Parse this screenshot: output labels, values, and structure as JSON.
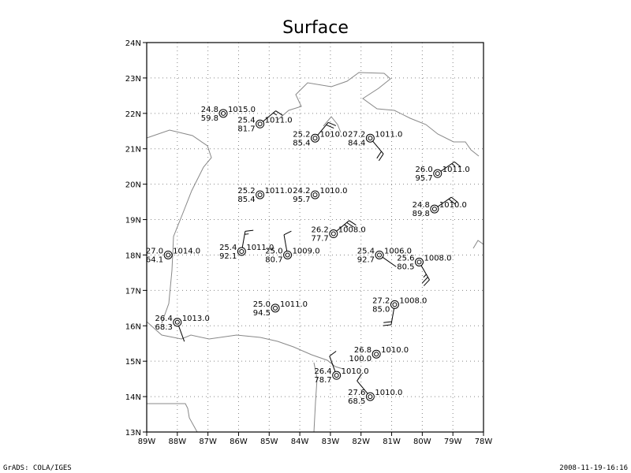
{
  "title": "Surface",
  "footer": {
    "left": "GrADS: COLA/IGES",
    "right": "2008-11-19-16:16"
  },
  "axes": {
    "x_ticks": [
      "89W",
      "88W",
      "87W",
      "86W",
      "85W",
      "84W",
      "83W",
      "82W",
      "81W",
      "80W",
      "79W",
      "78W"
    ],
    "y_ticks": [
      "13N",
      "14N",
      "15N",
      "16N",
      "17N",
      "18N",
      "19N",
      "20N",
      "21N",
      "22N",
      "23N",
      "24N"
    ],
    "lon_range": [
      -89,
      -78
    ],
    "lat_range": [
      13,
      24
    ],
    "grid": true,
    "grid_style": "dotted"
  },
  "colors": {
    "frame": "#000000",
    "coast": "#888888",
    "grid": "#888888",
    "station": "#000000"
  },
  "chart_data": {
    "type": "station-plot",
    "stations": [
      {
        "lon": -86.5,
        "lat": 22.0,
        "temp": "24.8",
        "pressure": "1015.0",
        "humidity": "59.8",
        "wind": null
      },
      {
        "lon": -85.3,
        "lat": 21.7,
        "temp": "25.4",
        "pressure": "1011.0",
        "humidity": "81.7",
        "wind": {
          "dir": 50,
          "barbs": 1.5
        }
      },
      {
        "lon": -83.5,
        "lat": 21.3,
        "temp": "25.2",
        "pressure": "1010.0",
        "humidity": "85.4",
        "wind": {
          "dir": 40,
          "barbs": 2
        }
      },
      {
        "lon": -81.7,
        "lat": 21.3,
        "temp": "27.2",
        "pressure": "1011.0",
        "humidity": "84.4",
        "wind": {
          "dir": 140,
          "barbs": 2
        }
      },
      {
        "lon": -79.5,
        "lat": 20.3,
        "temp": "26.0",
        "pressure": "1011.0",
        "humidity": "95.7",
        "wind": {
          "dir": 55,
          "barbs": 1.5
        }
      },
      {
        "lon": -85.3,
        "lat": 19.7,
        "temp": "25.2",
        "pressure": "1011.0",
        "humidity": "85.4",
        "wind": null
      },
      {
        "lon": -83.5,
        "lat": 19.7,
        "temp": "24.2",
        "pressure": "1010.0",
        "humidity": "95.7",
        "wind": null
      },
      {
        "lon": -79.6,
        "lat": 19.3,
        "temp": "24.8",
        "pressure": "1010.0",
        "humidity": "89.8",
        "wind": {
          "dir": 55,
          "barbs": 2
        }
      },
      {
        "lon": -82.9,
        "lat": 18.6,
        "temp": "26.2",
        "pressure": "1008.0",
        "humidity": "77.7",
        "wind": {
          "dir": 50,
          "barbs": 2.5
        }
      },
      {
        "lon": -85.9,
        "lat": 18.1,
        "temp": "25.4",
        "pressure": "1011.0",
        "humidity": "92.1",
        "wind": {
          "dir": 10,
          "barbs": 1.5
        }
      },
      {
        "lon": -88.3,
        "lat": 18.0,
        "temp": "27.0",
        "pressure": "1014.0",
        "humidity": "64.1",
        "wind": null
      },
      {
        "lon": -84.4,
        "lat": 18.0,
        "temp": "25.0",
        "pressure": "1009.0",
        "humidity": "80.7",
        "wind": {
          "dir": 350,
          "barbs": 1
        }
      },
      {
        "lon": -81.4,
        "lat": 18.0,
        "temp": "25.4",
        "pressure": "1006.0",
        "humidity": "92.7",
        "wind": {
          "dir": 125,
          "barbs": 0
        }
      },
      {
        "lon": -80.1,
        "lat": 17.8,
        "temp": "25.6",
        "pressure": "1008.0",
        "humidity": "80.5",
        "wind": {
          "dir": 150,
          "barbs": 2.5
        }
      },
      {
        "lon": -80.9,
        "lat": 16.6,
        "temp": "27.2",
        "pressure": "1008.0",
        "humidity": "85.0",
        "wind": {
          "dir": 190,
          "barbs": 2
        }
      },
      {
        "lon": -84.8,
        "lat": 16.5,
        "temp": "25.0",
        "pressure": "1011.0",
        "humidity": "94.5",
        "wind": null
      },
      {
        "lon": -88.0,
        "lat": 16.1,
        "temp": "26.4",
        "pressure": "1013.0",
        "humidity": "68.3",
        "wind": {
          "dir": 160,
          "barbs": 0
        }
      },
      {
        "lon": -81.5,
        "lat": 15.2,
        "temp": "26.8",
        "pressure": "1010.0",
        "humidity": "100.0",
        "wind": null
      },
      {
        "lon": -82.8,
        "lat": 14.6,
        "temp": "26.4",
        "pressure": "1010.0",
        "humidity": "78.7",
        "wind": {
          "dir": 340,
          "barbs": 1
        }
      },
      {
        "lon": -81.7,
        "lat": 14.0,
        "temp": "27.6",
        "pressure": "1010.0",
        "humidity": "68.5",
        "wind": {
          "dir": 320,
          "barbs": 1
        }
      }
    ]
  }
}
